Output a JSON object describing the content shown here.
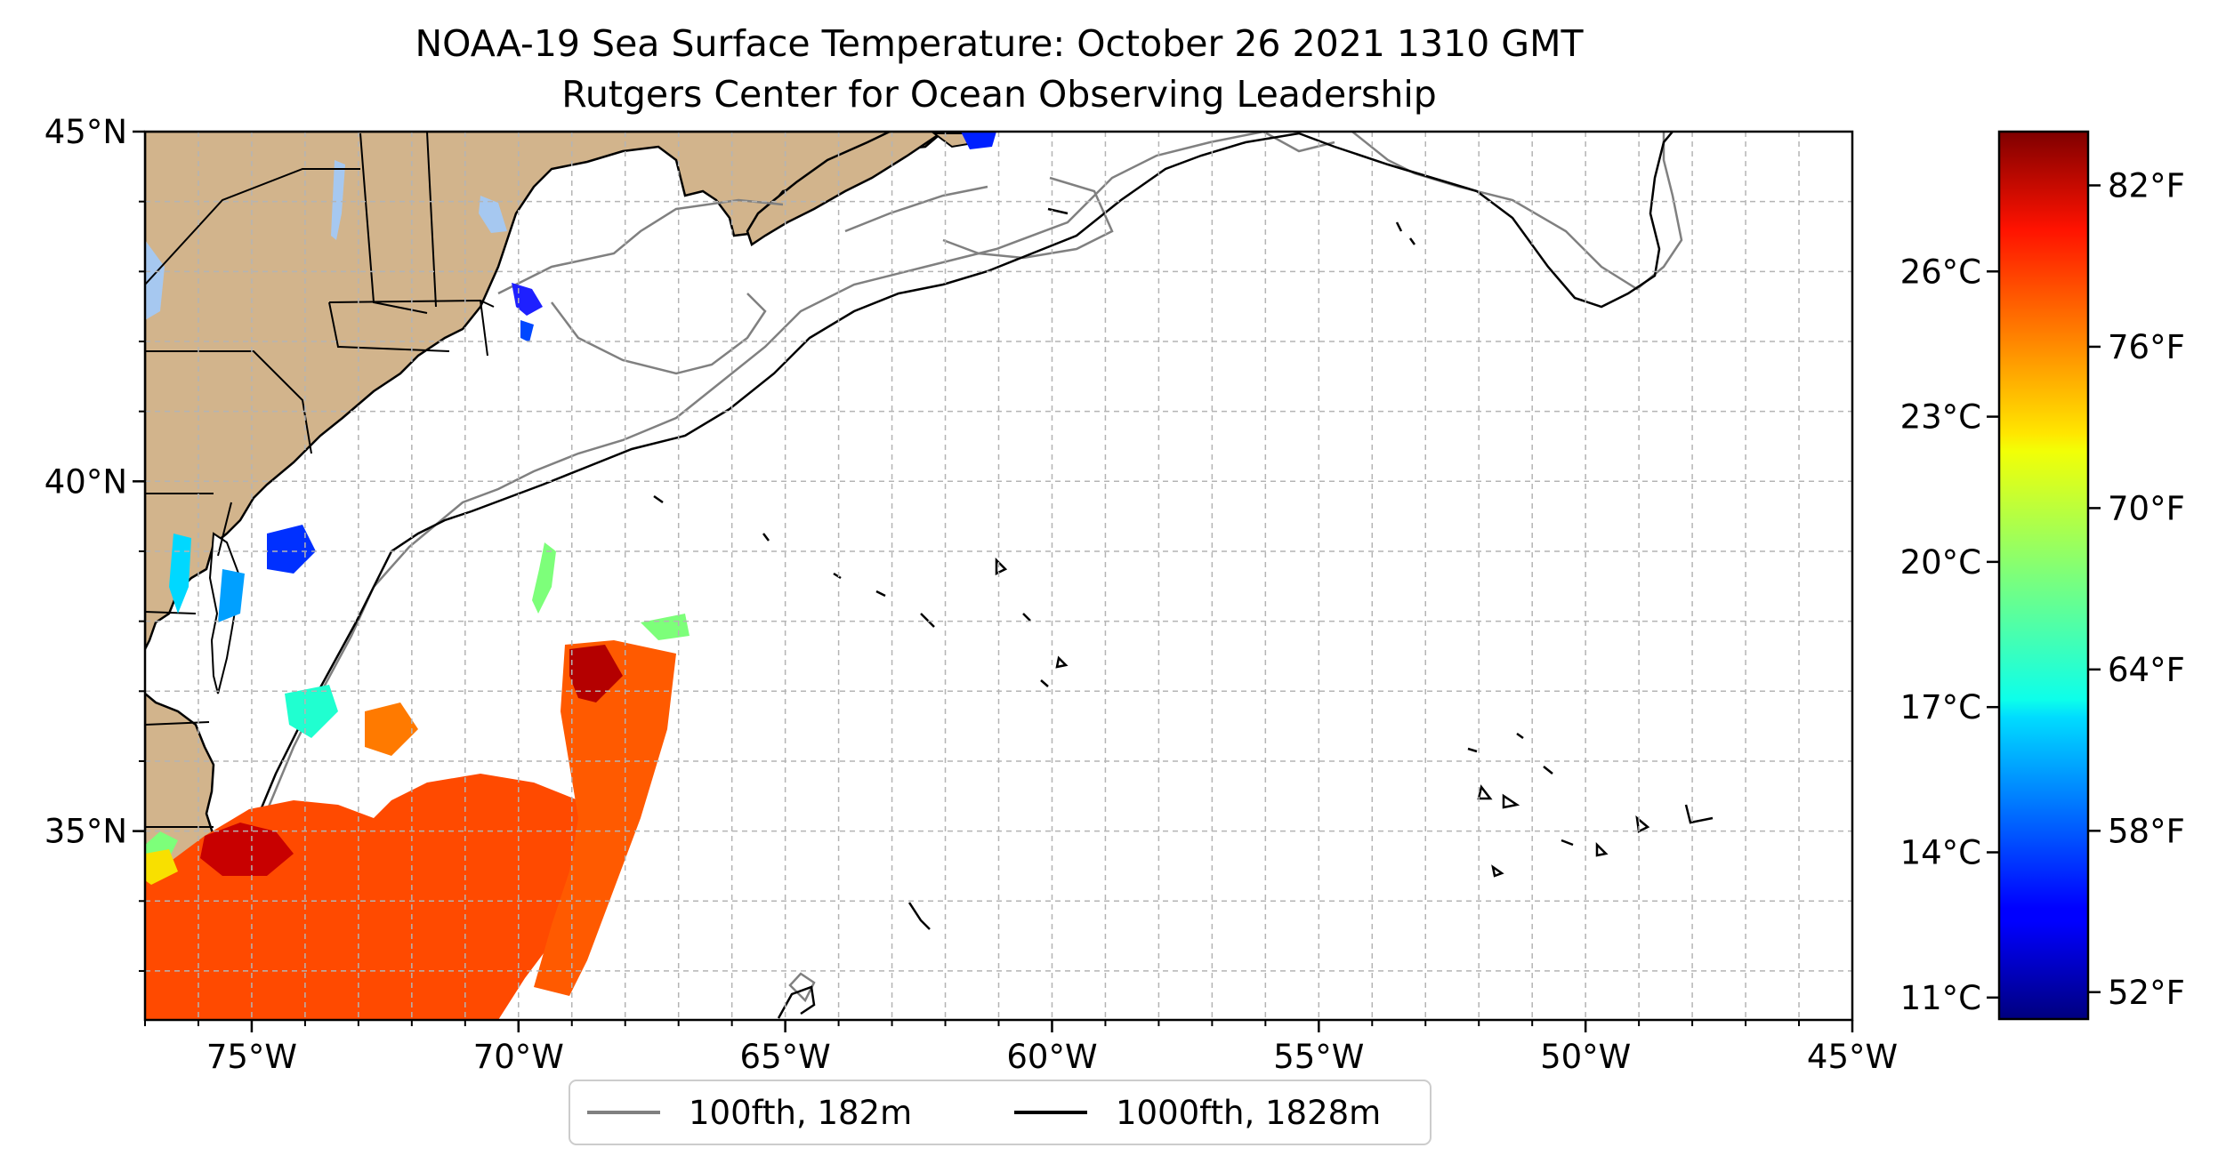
{
  "title": {
    "line1": "NOAA-19 Sea Surface Temperature: October 26 2021 1310 GMT",
    "line2": "Rutgers Center for Ocean Observing Leadership"
  },
  "map": {
    "lon_range": [
      -77,
      -45
    ],
    "lat_range": [
      32.3,
      45
    ],
    "lon_ticks": [
      {
        "value": -75,
        "label": "75°W"
      },
      {
        "value": -70,
        "label": "70°W"
      },
      {
        "value": -65,
        "label": "65°W"
      },
      {
        "value": -60,
        "label": "60°W"
      },
      {
        "value": -55,
        "label": "55°W"
      },
      {
        "value": -50,
        "label": "50°W"
      },
      {
        "value": -45,
        "label": "45°W"
      }
    ],
    "lat_ticks": [
      {
        "value": 45,
        "label": "45°N"
      },
      {
        "value": 40,
        "label": "40°N"
      },
      {
        "value": 35,
        "label": "35°N"
      }
    ],
    "grid": true,
    "grid_step_deg": 1,
    "land_color": "#d2b48c",
    "lake_color": "#a6c8f0"
  },
  "colorbar": {
    "colormap": "jet",
    "celsius_ticks": [
      {
        "value": 11,
        "label": "11°C"
      },
      {
        "value": 14,
        "label": "14°C"
      },
      {
        "value": 17,
        "label": "17°C"
      },
      {
        "value": 20,
        "label": "20°C"
      },
      {
        "value": 23,
        "label": "23°C"
      },
      {
        "value": 26,
        "label": "26°C"
      }
    ],
    "fahrenheit_ticks": [
      {
        "value": 52,
        "label": "52°F"
      },
      {
        "value": 58,
        "label": "58°F"
      },
      {
        "value": 64,
        "label": "64°F"
      },
      {
        "value": 70,
        "label": "70°F"
      },
      {
        "value": 76,
        "label": "76°F"
      },
      {
        "value": 82,
        "label": "82°F"
      }
    ],
    "range_f": [
      51,
      84
    ]
  },
  "legend": {
    "items": [
      {
        "label": "100fth, 182m",
        "color": "#808080"
      },
      {
        "label": "1000fth, 1828m",
        "color": "#000000"
      }
    ]
  }
}
